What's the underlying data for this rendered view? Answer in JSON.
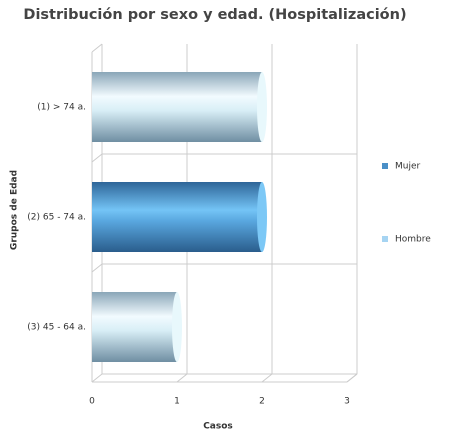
{
  "chart_data": {
    "type": "bar",
    "orientation": "horizontal",
    "stacked": true,
    "title": "Distribución por sexo y edad. (Hospitalización)",
    "x_label": "Casos",
    "y_label": "Grupos de Edad",
    "categories": [
      "(1) > 74 a.",
      "(2) 65 - 74 a.",
      "(3) 45 - 64 a."
    ],
    "series": [
      {
        "name": "Mujer",
        "color": "#4a8fc7",
        "values": [
          0,
          2,
          0
        ]
      },
      {
        "name": "Hombre",
        "color": "#a6d4f2",
        "values": [
          2,
          0,
          1
        ]
      }
    ],
    "xlim": [
      0,
      3
    ],
    "xticks": [
      0,
      1,
      2,
      3
    ],
    "grid": true,
    "legend": "right"
  }
}
